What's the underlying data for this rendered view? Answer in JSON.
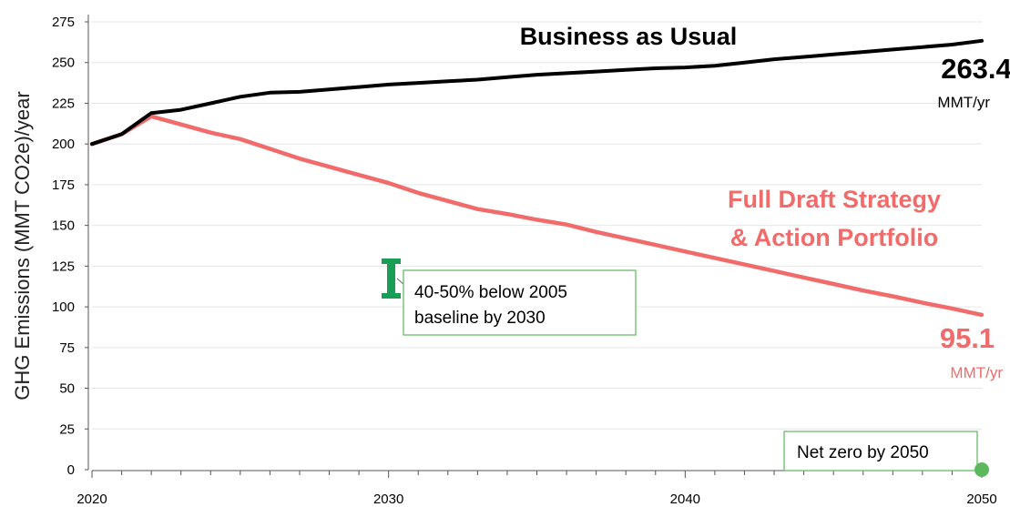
{
  "chart_data": {
    "type": "line",
    "ylabel": "GHG Emissions (MMT CO2e)/year",
    "xlabel": "",
    "ylim": [
      0,
      275
    ],
    "xlim": [
      2020,
      2050
    ],
    "y_ticks": [
      "0",
      "25",
      "50",
      "75",
      "100",
      "125",
      "150",
      "175",
      "200",
      "225",
      "250",
      "275"
    ],
    "x_ticks": [
      {
        "value": 2020,
        "label": "2020"
      },
      {
        "value": 2030,
        "label": "2030"
      },
      {
        "value": 2040,
        "label": "2040"
      },
      {
        "value": 2050,
        "label": "2050"
      }
    ],
    "grid": "horizontal",
    "series": [
      {
        "name": "Business as Usual",
        "color": "#000000",
        "x": [
          2020,
          2021,
          2022,
          2023,
          2024,
          2025,
          2026,
          2027,
          2028,
          2029,
          2030,
          2031,
          2032,
          2033,
          2034,
          2035,
          2036,
          2037,
          2038,
          2039,
          2040,
          2041,
          2042,
          2043,
          2044,
          2045,
          2046,
          2047,
          2048,
          2049,
          2050
        ],
        "y": [
          200,
          206,
          219,
          221,
          225,
          229,
          231.5,
          232,
          233.5,
          235,
          236.5,
          237.5,
          238.5,
          239.5,
          241,
          242.5,
          243.5,
          244.5,
          245.5,
          246.5,
          247,
          248,
          250,
          252,
          253.5,
          255,
          256.5,
          258,
          259.5,
          261,
          263.4
        ]
      },
      {
        "name": "Full Draft Strategy & Action Portfolio",
        "color": "#f26b6b",
        "x": [
          2020,
          2021,
          2022,
          2023,
          2024,
          2025,
          2026,
          2027,
          2028,
          2029,
          2030,
          2031,
          2032,
          2033,
          2034,
          2035,
          2036,
          2037,
          2038,
          2039,
          2040,
          2041,
          2042,
          2043,
          2044,
          2045,
          2046,
          2047,
          2048,
          2049,
          2050
        ],
        "y": [
          200,
          206,
          217,
          212,
          207,
          203,
          197,
          191,
          186,
          181,
          176,
          170,
          165,
          160,
          157,
          153.5,
          150.5,
          146,
          142,
          138,
          134,
          130,
          126,
          122,
          118,
          114,
          110,
          106.5,
          102.5,
          99,
          95.1
        ]
      }
    ],
    "end_labels": [
      {
        "value": "263.4",
        "unit": "MMT/yr",
        "color": "#000000"
      },
      {
        "value": "95.1",
        "unit": "MMT/yr",
        "color": "#f26b6b"
      }
    ],
    "series_titles": [
      {
        "lines": [
          "Business as Usual"
        ],
        "color": "#000000"
      },
      {
        "lines": [
          "Full Draft Strategy",
          "& Action Portfolio"
        ],
        "color": "#f26b6b"
      }
    ],
    "annotations": [
      {
        "lines": [
          "40-50% below 2005",
          "baseline by 2030"
        ],
        "color": "#1a9e55",
        "x": 2030,
        "y_range": [
          100,
          130
        ]
      },
      {
        "lines": [
          "Net zero by 2050"
        ],
        "color": "#5cb85c",
        "x": 2050,
        "y": 0
      }
    ]
  }
}
